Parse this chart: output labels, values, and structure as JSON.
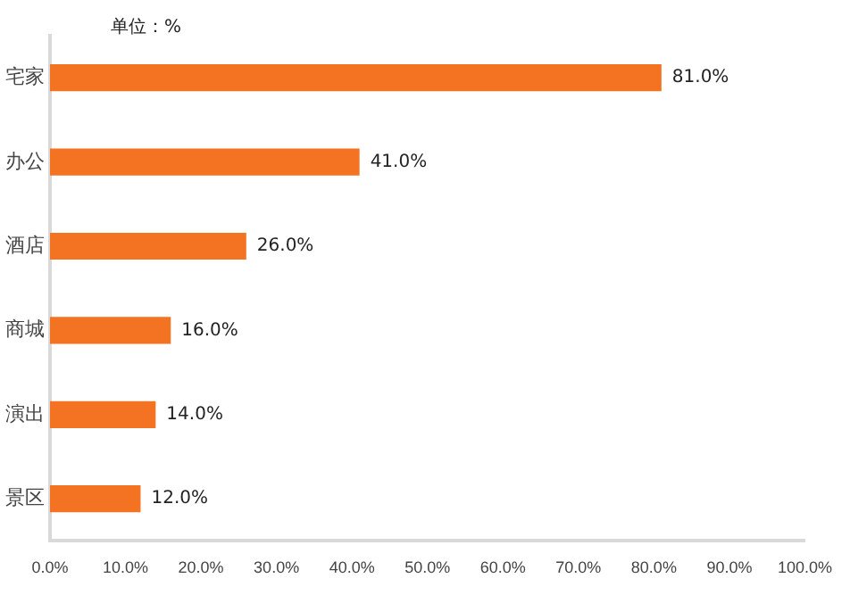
{
  "chart_data": {
    "type": "bar",
    "orientation": "horizontal",
    "annotations": [
      "单位：%"
    ],
    "categories": [
      "宅家",
      "办公",
      "酒店",
      "商城",
      "演出",
      "景区"
    ],
    "values": [
      81,
      41,
      26,
      16,
      14,
      12
    ],
    "value_labels": [
      "81.0%",
      "41.0%",
      "26.0%",
      "16.0%",
      "14.0%",
      "12.0%"
    ],
    "color": "#f47322",
    "xlim": [
      0,
      100
    ],
    "xticks": [
      {
        "value": 0,
        "label": "0.0%"
      },
      {
        "value": 10,
        "label": "10.0%"
      },
      {
        "value": 20,
        "label": "20.0%"
      },
      {
        "value": 30,
        "label": "30.0%"
      },
      {
        "value": 40,
        "label": "40.0%"
      },
      {
        "value": 50,
        "label": "50.0%"
      },
      {
        "value": 60,
        "label": "60.0%"
      },
      {
        "value": 70,
        "label": "70.0%"
      },
      {
        "value": 80,
        "label": "80.0%"
      },
      {
        "value": 90,
        "label": "90.0%"
      },
      {
        "value": 100,
        "label": "100.0%"
      }
    ],
    "grid": false,
    "legend": false
  }
}
